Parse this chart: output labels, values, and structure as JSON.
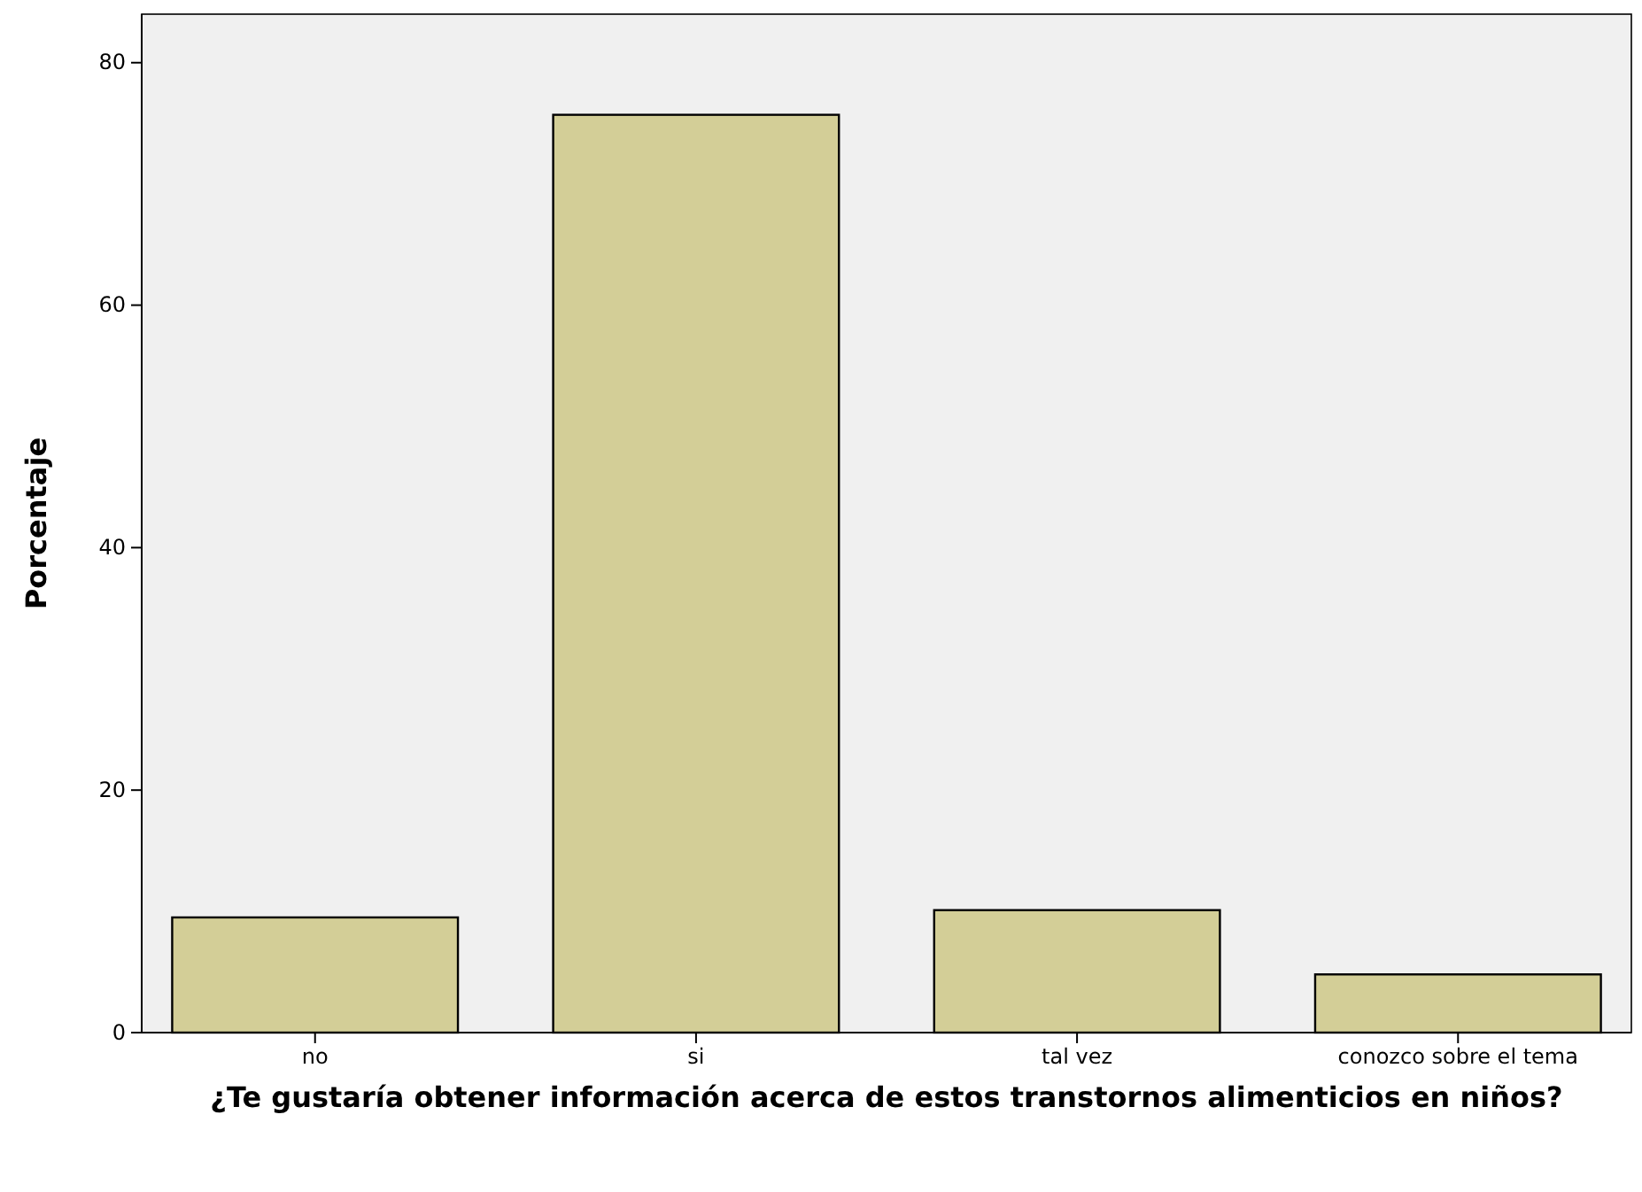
{
  "chart_data": {
    "type": "bar",
    "categories": [
      "no",
      "si",
      "tal vez",
      "conozco sobre el tema"
    ],
    "values": [
      9.5,
      75.7,
      10.1,
      4.8
    ],
    "color": "#d3ce97",
    "xlabel": "¿Te gustaría obtener información acerca de estos transtornos alimenticios en niños?",
    "ylabel": "Porcentaje",
    "ylim": [
      0,
      84
    ],
    "yticks": [
      0,
      20,
      40,
      60,
      80
    ],
    "grid": false
  }
}
